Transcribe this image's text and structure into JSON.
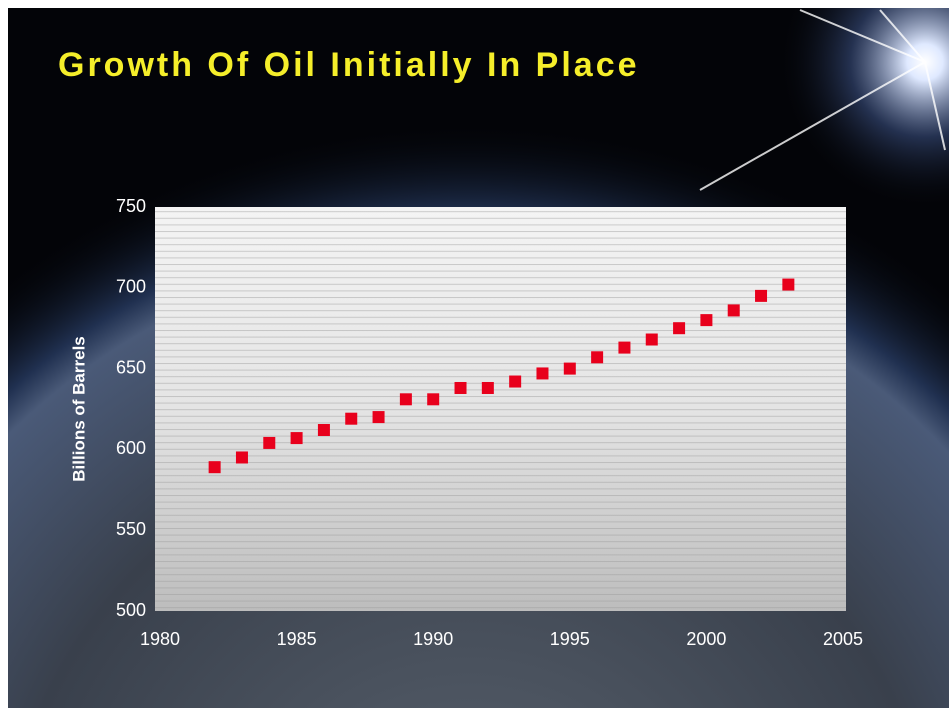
{
  "chart_data": {
    "type": "scatter",
    "title": "Growth Of Oil Initially In Place",
    "y_label": "Billions of Barrels",
    "x": [
      1982,
      1983,
      1984,
      1985,
      1986,
      1987,
      1988,
      1989,
      1990,
      1991,
      1992,
      1993,
      1994,
      1995,
      1996,
      1997,
      1998,
      1999,
      2000,
      2001,
      2002,
      2003
    ],
    "series": [
      {
        "color": "#e8001c",
        "values": [
          589,
          595,
          604,
          607,
          612,
          619,
          620,
          631,
          631,
          638,
          638,
          642,
          647,
          650,
          657,
          663,
          668,
          675,
          680,
          686,
          695,
          702
        ]
      }
    ],
    "xlim": [
      1980,
      2005
    ],
    "xticks": [
      1980,
      1985,
      1990,
      1995,
      2000,
      2005
    ],
    "ylim": [
      500,
      750
    ],
    "yticks": [
      500,
      550,
      600,
      650,
      700,
      750
    ]
  }
}
